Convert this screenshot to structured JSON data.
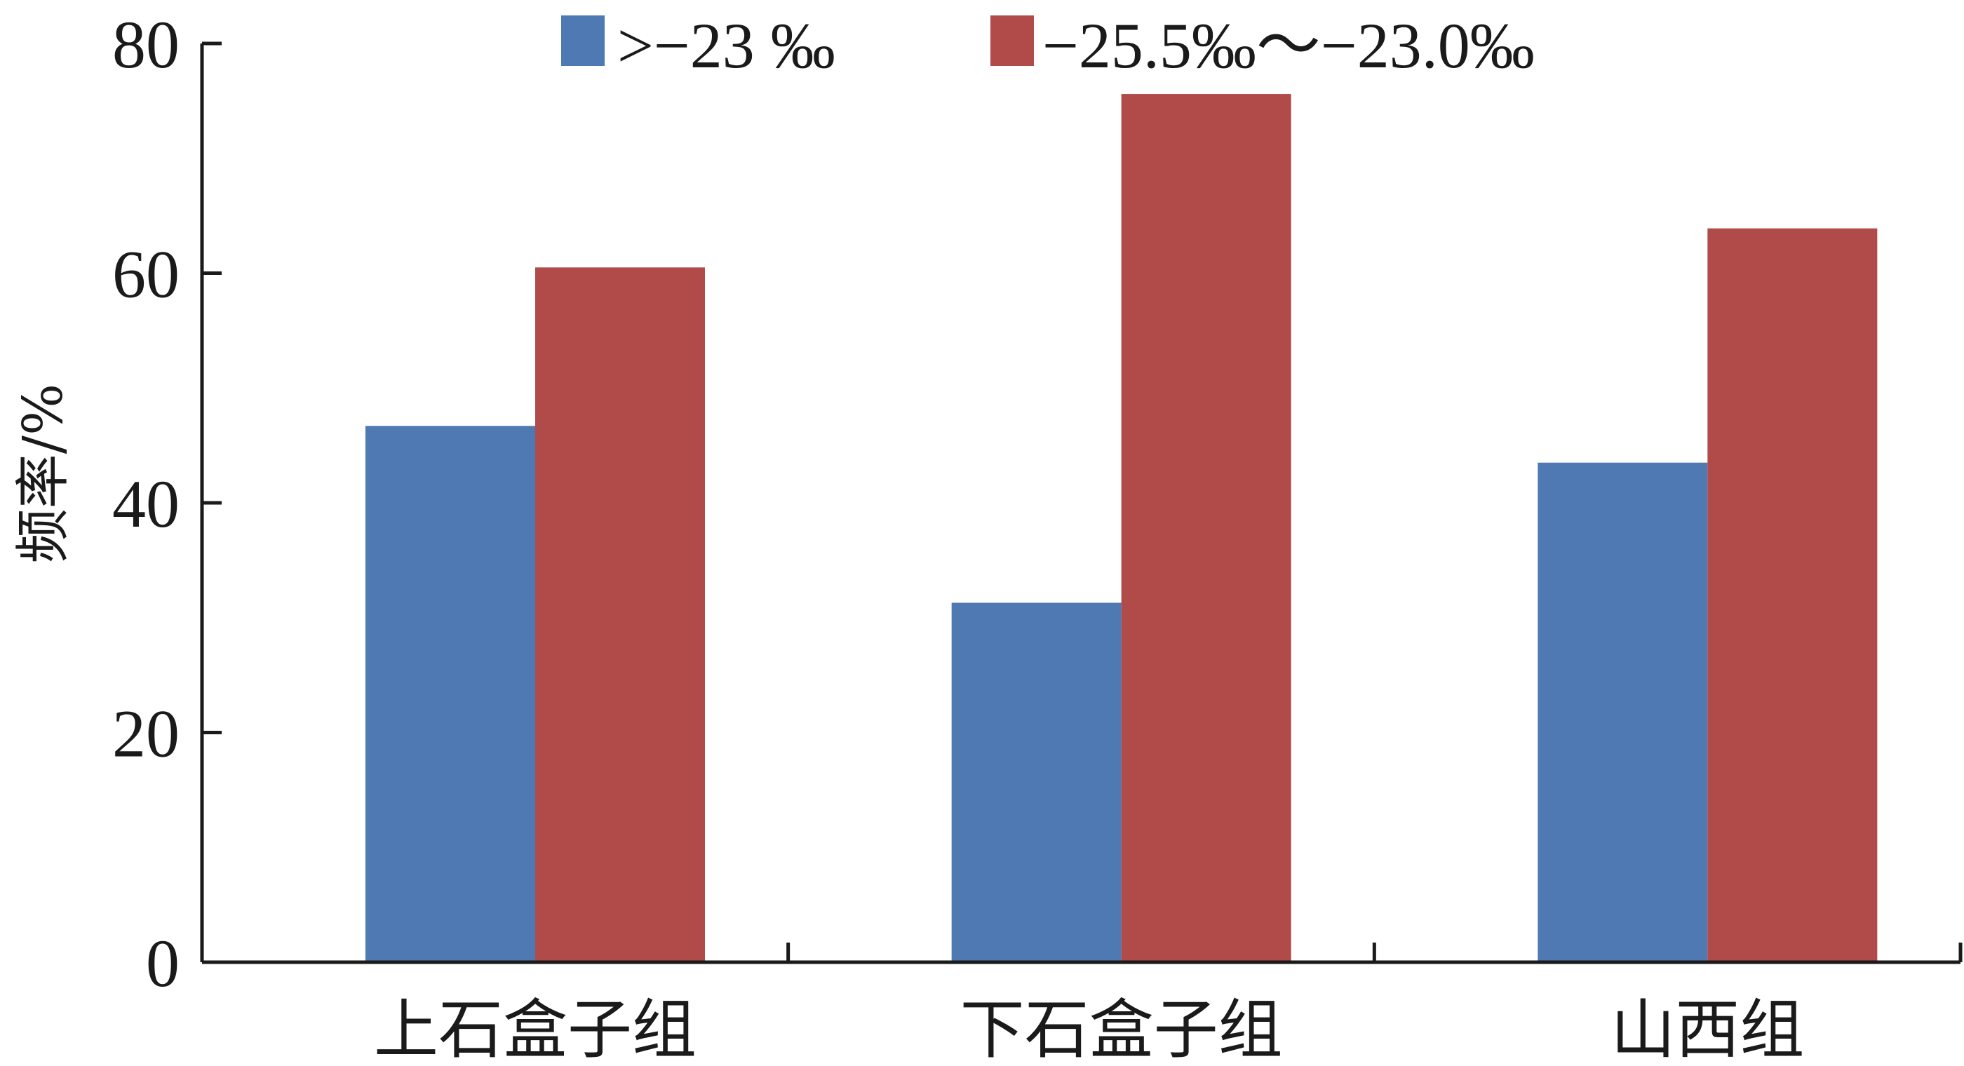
{
  "chart_data": {
    "type": "bar",
    "title": "",
    "xlabel": "",
    "ylabel": "频率/%",
    "ylim": [
      0,
      80
    ],
    "yticks": [
      "0",
      "20",
      "40",
      "60",
      "80"
    ],
    "categories": [
      "上石盒子组",
      "下石盒子组",
      "山西组"
    ],
    "series": [
      {
        "name": ">−23 ‰",
        "color": "#4e79b3",
        "values": [
          46.7,
          31.3,
          43.5
        ]
      },
      {
        "name": "−25.5‰～−23.0‰",
        "color": "#b04b49",
        "values": [
          60.5,
          75.6,
          63.9
        ]
      }
    ],
    "grid": false,
    "legend_position": "top"
  }
}
